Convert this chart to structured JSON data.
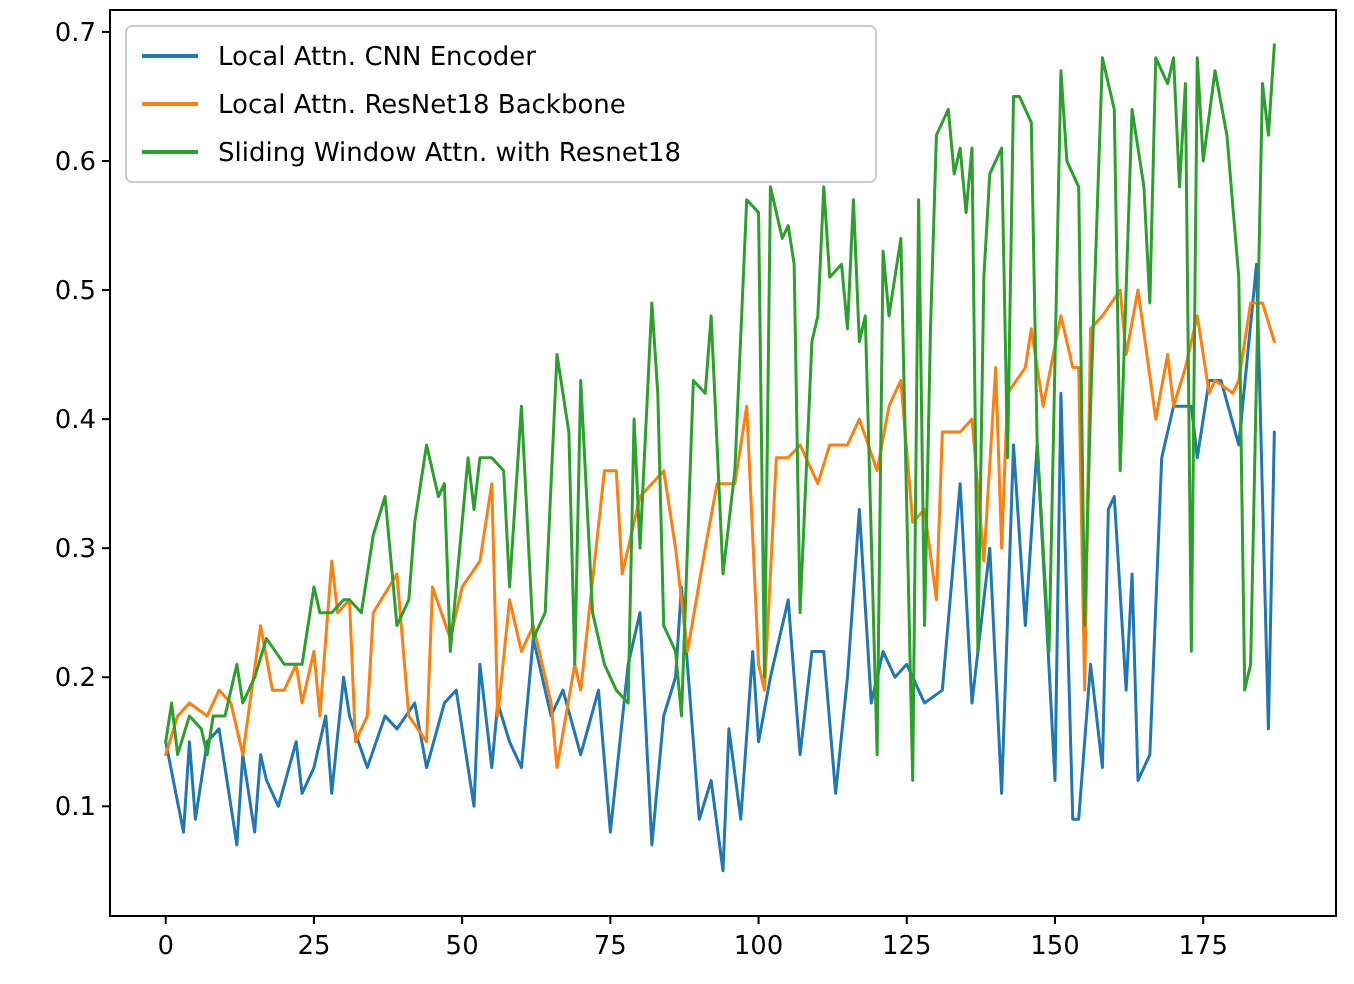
{
  "chart_data": {
    "type": "line",
    "xlim": [
      -9.4,
      197.4
    ],
    "ylim": [
      0.015,
      0.717
    ],
    "xticks": [
      0,
      25,
      50,
      75,
      100,
      125,
      150,
      175
    ],
    "yticks": [
      0.1,
      0.2,
      0.3,
      0.4,
      0.5,
      0.6,
      0.7
    ],
    "legend": "top left",
    "grid": false,
    "series": [
      {
        "name": "Local Attn. CNN Encoder",
        "color": "#1f77b4",
        "x": [
          0,
          3,
          4,
          5,
          7,
          9,
          12,
          13,
          15,
          16,
          17,
          19,
          22,
          23,
          25,
          27,
          28,
          30,
          31,
          34,
          37,
          39,
          42,
          44,
          47,
          49,
          52,
          53,
          55,
          56,
          58,
          60,
          62,
          65,
          67,
          70,
          73,
          75,
          78,
          80,
          82,
          84,
          86,
          87,
          90,
          92,
          94,
          95,
          97,
          99,
          100,
          102,
          105,
          107,
          109,
          111,
          113,
          115,
          117,
          119,
          121,
          123,
          125,
          128,
          131,
          134,
          136,
          139,
          141,
          143,
          145,
          147,
          150,
          151,
          153,
          154,
          156,
          158,
          159,
          160,
          162,
          163,
          164,
          166,
          168,
          170,
          173,
          174,
          176,
          178,
          181,
          184,
          186,
          187
        ],
        "values": [
          0.15,
          0.08,
          0.15,
          0.09,
          0.15,
          0.16,
          0.07,
          0.14,
          0.08,
          0.14,
          0.12,
          0.1,
          0.15,
          0.11,
          0.13,
          0.17,
          0.11,
          0.2,
          0.17,
          0.13,
          0.17,
          0.16,
          0.18,
          0.13,
          0.18,
          0.19,
          0.1,
          0.21,
          0.13,
          0.18,
          0.15,
          0.13,
          0.23,
          0.17,
          0.19,
          0.14,
          0.19,
          0.08,
          0.21,
          0.25,
          0.07,
          0.17,
          0.2,
          0.27,
          0.09,
          0.12,
          0.05,
          0.16,
          0.09,
          0.22,
          0.15,
          0.2,
          0.26,
          0.14,
          0.22,
          0.22,
          0.11,
          0.2,
          0.33,
          0.18,
          0.22,
          0.2,
          0.21,
          0.18,
          0.19,
          0.35,
          0.18,
          0.3,
          0.11,
          0.38,
          0.24,
          0.38,
          0.12,
          0.42,
          0.09,
          0.09,
          0.21,
          0.13,
          0.33,
          0.34,
          0.19,
          0.28,
          0.12,
          0.14,
          0.37,
          0.41,
          0.41,
          0.37,
          0.43,
          0.43,
          0.38,
          0.52,
          0.16,
          0.39
        ]
      },
      {
        "name": "Local Attn. ResNet18 Backbone",
        "color": "#ff7f0e",
        "x": [
          0,
          2,
          4,
          7,
          9,
          11,
          13,
          16,
          18,
          20,
          22,
          23,
          25,
          26,
          28,
          29,
          31,
          32,
          34,
          35,
          39,
          41,
          44,
          45,
          48,
          50,
          53,
          55,
          56,
          58,
          60,
          62,
          65,
          66,
          69,
          70,
          74,
          76,
          77,
          80,
          82,
          84,
          86,
          88,
          91,
          93,
          96,
          98,
          100,
          101,
          103,
          105,
          107,
          110,
          112,
          115,
          117,
          120,
          122,
          124,
          126,
          128,
          130,
          131,
          134,
          136,
          138,
          140,
          141,
          142,
          145,
          146,
          148,
          151,
          153,
          154,
          155,
          156,
          158,
          161,
          162,
          164,
          167,
          169,
          170,
          172,
          174,
          176,
          177,
          180,
          181,
          183,
          185,
          187
        ],
        "values": [
          0.14,
          0.17,
          0.18,
          0.17,
          0.19,
          0.18,
          0.14,
          0.24,
          0.19,
          0.19,
          0.21,
          0.18,
          0.22,
          0.17,
          0.29,
          0.25,
          0.26,
          0.15,
          0.17,
          0.25,
          0.28,
          0.17,
          0.15,
          0.27,
          0.23,
          0.27,
          0.29,
          0.35,
          0.17,
          0.26,
          0.22,
          0.24,
          0.18,
          0.13,
          0.21,
          0.19,
          0.36,
          0.36,
          0.28,
          0.34,
          0.35,
          0.36,
          0.3,
          0.22,
          0.3,
          0.35,
          0.35,
          0.41,
          0.21,
          0.19,
          0.37,
          0.37,
          0.38,
          0.35,
          0.38,
          0.38,
          0.4,
          0.36,
          0.41,
          0.43,
          0.32,
          0.33,
          0.26,
          0.39,
          0.39,
          0.4,
          0.29,
          0.44,
          0.3,
          0.42,
          0.44,
          0.47,
          0.41,
          0.48,
          0.44,
          0.44,
          0.19,
          0.47,
          0.48,
          0.5,
          0.45,
          0.5,
          0.4,
          0.45,
          0.41,
          0.44,
          0.48,
          0.42,
          0.43,
          0.42,
          0.43,
          0.49,
          0.49,
          0.46
        ]
      },
      {
        "name": "Sliding Window Attn. with Resnet18",
        "color": "#2ca02c",
        "x": [
          0,
          1,
          2,
          4,
          6,
          7,
          8,
          10,
          12,
          13,
          15,
          17,
          20,
          23,
          25,
          26,
          28,
          30,
          31,
          33,
          35,
          37,
          39,
          41,
          42,
          44,
          46,
          47,
          48,
          51,
          52,
          53,
          55,
          57,
          58,
          60,
          62,
          64,
          66,
          68,
          69,
          70,
          72,
          74,
          76,
          78,
          79,
          80,
          82,
          83,
          84,
          86,
          87,
          89,
          91,
          92,
          94,
          96,
          98,
          100,
          101,
          102,
          104,
          105,
          106,
          107,
          109,
          110,
          111,
          112,
          114,
          115,
          116,
          117,
          118,
          120,
          121,
          122,
          124,
          126,
          127,
          128,
          129,
          130,
          132,
          133,
          134,
          135,
          136,
          137,
          138,
          139,
          141,
          142,
          143,
          144,
          146,
          147,
          149,
          151,
          152,
          154,
          155,
          156,
          158,
          160,
          161,
          163,
          165,
          166,
          167,
          169,
          170,
          171,
          172,
          173,
          174,
          175,
          177,
          179,
          181,
          182,
          183,
          185,
          186,
          187
        ],
        "values": [
          0.15,
          0.18,
          0.14,
          0.17,
          0.16,
          0.14,
          0.17,
          0.17,
          0.21,
          0.18,
          0.2,
          0.23,
          0.21,
          0.21,
          0.27,
          0.25,
          0.25,
          0.26,
          0.26,
          0.25,
          0.31,
          0.34,
          0.24,
          0.26,
          0.32,
          0.38,
          0.34,
          0.35,
          0.22,
          0.37,
          0.33,
          0.37,
          0.37,
          0.36,
          0.27,
          0.41,
          0.23,
          0.25,
          0.45,
          0.39,
          0.21,
          0.43,
          0.25,
          0.21,
          0.19,
          0.18,
          0.4,
          0.3,
          0.49,
          0.42,
          0.24,
          0.22,
          0.17,
          0.43,
          0.42,
          0.48,
          0.28,
          0.36,
          0.57,
          0.56,
          0.2,
          0.58,
          0.54,
          0.55,
          0.52,
          0.25,
          0.46,
          0.48,
          0.58,
          0.51,
          0.52,
          0.47,
          0.57,
          0.46,
          0.48,
          0.14,
          0.53,
          0.48,
          0.54,
          0.12,
          0.57,
          0.24,
          0.47,
          0.62,
          0.64,
          0.59,
          0.61,
          0.56,
          0.61,
          0.22,
          0.51,
          0.59,
          0.61,
          0.37,
          0.65,
          0.65,
          0.63,
          0.38,
          0.22,
          0.67,
          0.6,
          0.58,
          0.24,
          0.41,
          0.68,
          0.64,
          0.36,
          0.64,
          0.58,
          0.49,
          0.68,
          0.66,
          0.68,
          0.58,
          0.66,
          0.22,
          0.68,
          0.6,
          0.67,
          0.62,
          0.51,
          0.19,
          0.21,
          0.66,
          0.62,
          0.69
        ]
      }
    ]
  }
}
